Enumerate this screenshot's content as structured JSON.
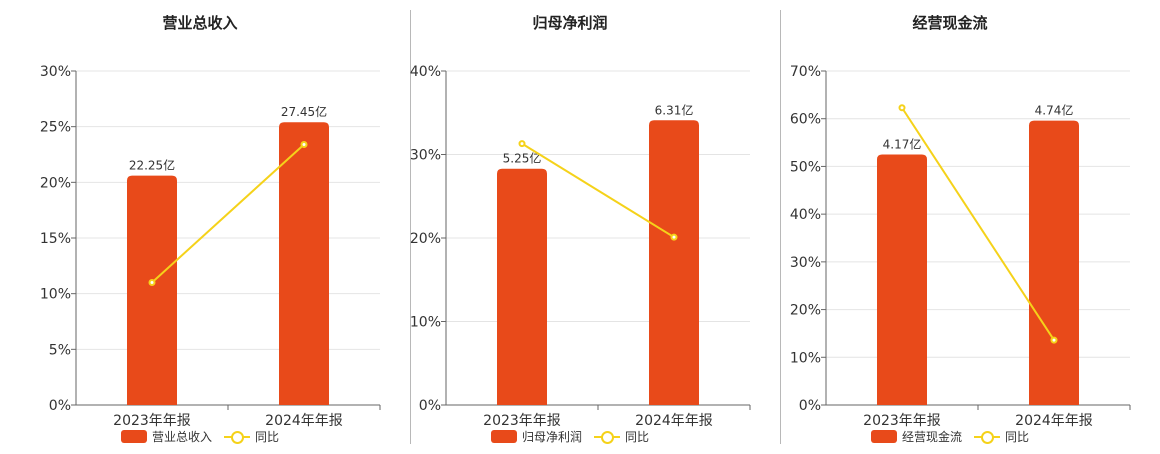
{
  "colors": {
    "bar": "#e84a1a",
    "line": "#f5d21a",
    "grid": "#e4e4e4",
    "axis": "#666666"
  },
  "chart_data": [
    {
      "type": "bar",
      "title": "营业总收入",
      "categories": [
        "2023年年报",
        "2024年年报"
      ],
      "bar_labels": [
        "22.25亿",
        "27.45亿"
      ],
      "series": [
        {
          "name": "营业总收入",
          "type": "bar",
          "values": [
            20.6,
            25.4
          ]
        },
        {
          "name": "同比",
          "type": "line",
          "values": [
            11.0,
            23.4
          ]
        }
      ],
      "yticks": [
        "0%",
        "5%",
        "10%",
        "15%",
        "20%",
        "25%",
        "30%"
      ],
      "ylim": [
        0,
        30
      ],
      "grid": true
    },
    {
      "type": "bar",
      "title": "归母净利润",
      "categories": [
        "2023年年报",
        "2024年年报"
      ],
      "bar_labels": [
        "5.25亿",
        "6.31亿"
      ],
      "series": [
        {
          "name": "归母净利润",
          "type": "bar",
          "values": [
            28.3,
            34.1
          ]
        },
        {
          "name": "同比",
          "type": "line",
          "values": [
            31.3,
            20.1
          ]
        }
      ],
      "yticks": [
        "0%",
        "10%",
        "20%",
        "30%",
        "40%"
      ],
      "ylim": [
        0,
        40
      ],
      "grid": true
    },
    {
      "type": "bar",
      "title": "经营现金流",
      "categories": [
        "2023年年报",
        "2024年年报"
      ],
      "bar_labels": [
        "4.17亿",
        "4.74亿"
      ],
      "series": [
        {
          "name": "经营现金流",
          "type": "bar",
          "values": [
            52.5,
            59.6
          ]
        },
        {
          "name": "同比",
          "type": "line",
          "values": [
            62.3,
            13.6
          ]
        }
      ],
      "yticks": [
        "0%",
        "10%",
        "20%",
        "30%",
        "40%",
        "50%",
        "60%",
        "70%"
      ],
      "ylim": [
        0,
        70
      ],
      "grid": true
    }
  ]
}
